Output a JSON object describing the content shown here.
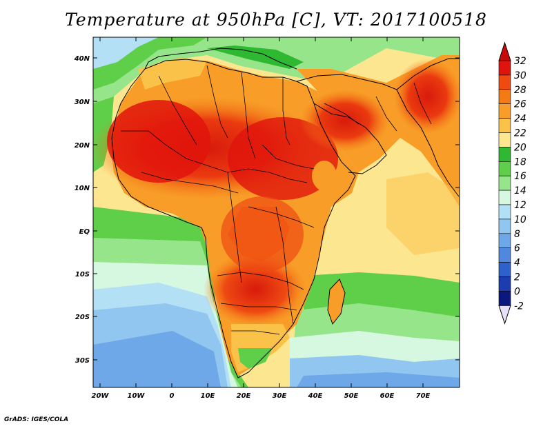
{
  "title": "Temperature at 950hPa [C], VT: 2017100518",
  "credit": "GrADS: IGES/COLA",
  "map": {
    "lon_range": [
      -22,
      80
    ],
    "lat_range": [
      -36,
      45
    ],
    "lat_ticks": [
      "40N",
      "30N",
      "20N",
      "10N",
      "EQ",
      "10S",
      "20S",
      "30S"
    ],
    "lon_ticks": [
      "20W",
      "10W",
      "0",
      "10E",
      "20E",
      "30E",
      "40E",
      "50E",
      "60E",
      "70E"
    ]
  },
  "colorbar": {
    "labels": [
      "32",
      "30",
      "28",
      "26",
      "24",
      "22",
      "20",
      "18",
      "16",
      "14",
      "12",
      "10",
      "8",
      "6",
      "4",
      "2",
      "0",
      "-2"
    ],
    "colors": [
      "#e0140c",
      "#f04a10",
      "#f47a14",
      "#f89e28",
      "#fbc24a",
      "#fce690",
      "#2fb832",
      "#5fcf4a",
      "#97e58a",
      "#d6f7e0",
      "#b4e0f6",
      "#90c6f0",
      "#6ea8e8",
      "#4f88de",
      "#2d62cc",
      "#1d3cb0",
      "#0a1880"
    ],
    "over_color": "#c80a0a",
    "under_color": "#e6e0f8"
  }
}
